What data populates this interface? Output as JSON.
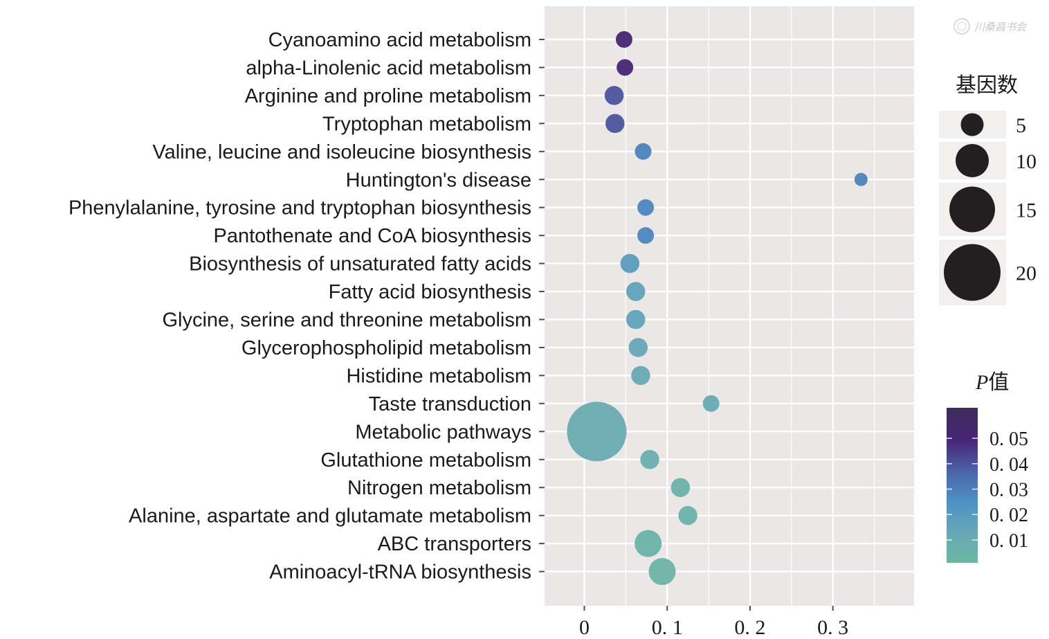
{
  "chart_data": {
    "type": "scatter",
    "subtype": "bubble",
    "title": "",
    "xlabel": "",
    "ylabel": "",
    "xlim": [
      -0.048,
      0.398
    ],
    "x_ticks": [
      0,
      0.1,
      0.2,
      0.3
    ],
    "x_tick_labels": [
      "0",
      "0. 1",
      "0. 2",
      "0. 3"
    ],
    "grid": true,
    "categories": [
      "Cyanoamino acid metabolism",
      "alpha-Linolenic acid metabolism",
      "Arginine and proline metabolism",
      "Tryptophan metabolism",
      "Valine, leucine and isoleucine biosynthesis",
      "Huntington's disease",
      "Phenylalanine, tyrosine and tryptophan biosynthesis",
      "Pantothenate and CoA biosynthesis",
      "Biosynthesis of unsaturated fatty acids",
      "Fatty acid biosynthesis",
      "Glycine, serine and threonine metabolism",
      "Glycerophospholipid metabolism",
      "Histidine metabolism",
      "Taste transduction",
      "Metabolic pathways",
      "Glutathione metabolism",
      "Nitrogen metabolism",
      "Alanine, aspartate and glutamate metabolism",
      "ABC transporters",
      "Aminoacyl-tRNA biosynthesis"
    ],
    "points": [
      {
        "category": "Cyanoamino acid metabolism",
        "x": 0.048,
        "gene_count": 3,
        "p_value": 0.052
      },
      {
        "category": "alpha-Linolenic acid metabolism",
        "x": 0.049,
        "gene_count": 3,
        "p_value": 0.051
      },
      {
        "category": "Arginine and proline metabolism",
        "x": 0.036,
        "gene_count": 4,
        "p_value": 0.04
      },
      {
        "category": "Tryptophan metabolism",
        "x": 0.037,
        "gene_count": 4,
        "p_value": 0.04
      },
      {
        "category": "Valine, leucine and isoleucine biosynthesis",
        "x": 0.071,
        "gene_count": 3,
        "p_value": 0.029
      },
      {
        "category": "Huntington's disease",
        "x": 0.334,
        "gene_count": 2,
        "p_value": 0.029
      },
      {
        "category": "Phenylalanine, tyrosine and tryptophan biosynthesis",
        "x": 0.074,
        "gene_count": 3,
        "p_value": 0.028
      },
      {
        "category": "Pantothenate and CoA biosynthesis",
        "x": 0.074,
        "gene_count": 3,
        "p_value": 0.028
      },
      {
        "category": "Biosynthesis of unsaturated fatty acids",
        "x": 0.055,
        "gene_count": 4,
        "p_value": 0.019
      },
      {
        "category": "Fatty acid biosynthesis",
        "x": 0.062,
        "gene_count": 4,
        "p_value": 0.016
      },
      {
        "category": "Glycine, serine and threonine metabolism",
        "x": 0.062,
        "gene_count": 4,
        "p_value": 0.016
      },
      {
        "category": "Glycerophospholipid metabolism",
        "x": 0.065,
        "gene_count": 4,
        "p_value": 0.013
      },
      {
        "category": "Histidine metabolism",
        "x": 0.068,
        "gene_count": 4,
        "p_value": 0.012
      },
      {
        "category": "Taste transduction",
        "x": 0.153,
        "gene_count": 3,
        "p_value": 0.011
      },
      {
        "category": "Metabolic pathways",
        "x": 0.015,
        "gene_count": 22,
        "p_value": 0.01
      },
      {
        "category": "Glutathione metabolism",
        "x": 0.079,
        "gene_count": 4,
        "p_value": 0.008
      },
      {
        "category": "Nitrogen metabolism",
        "x": 0.116,
        "gene_count": 4,
        "p_value": 0.006
      },
      {
        "category": "Alanine, aspartate and glutamate metabolism",
        "x": 0.125,
        "gene_count": 4,
        "p_value": 0.005
      },
      {
        "category": "ABC transporters",
        "x": 0.077,
        "gene_count": 6,
        "p_value": 0.004
      },
      {
        "category": "Aminoacyl-tRNA biosynthesis",
        "x": 0.094,
        "gene_count": 6,
        "p_value": 0.003
      }
    ],
    "size_legend": {
      "title": "基因数",
      "values": [
        5,
        10,
        15,
        20
      ],
      "labels": [
        "5",
        "10",
        "15",
        "20"
      ],
      "placement": "right-top"
    },
    "color_legend": {
      "title_italic": "P",
      "title_rest": "值",
      "range": [
        0.001,
        0.062
      ],
      "ticks": [
        0.05,
        0.04,
        0.03,
        0.02,
        0.01
      ],
      "tick_labels": [
        "0. 05",
        "0. 04",
        "0. 03",
        "0. 02",
        "0. 01"
      ],
      "colors_low_to_high": [
        "#6db7a3",
        "#67a7b6",
        "#4e90c6",
        "#4c60a6",
        "#472476",
        "#3d2e58"
      ],
      "placement": "right-bottom"
    },
    "panel_background": "#ebe7e6"
  },
  "watermark": {
    "text": "川桑昌书会"
  }
}
